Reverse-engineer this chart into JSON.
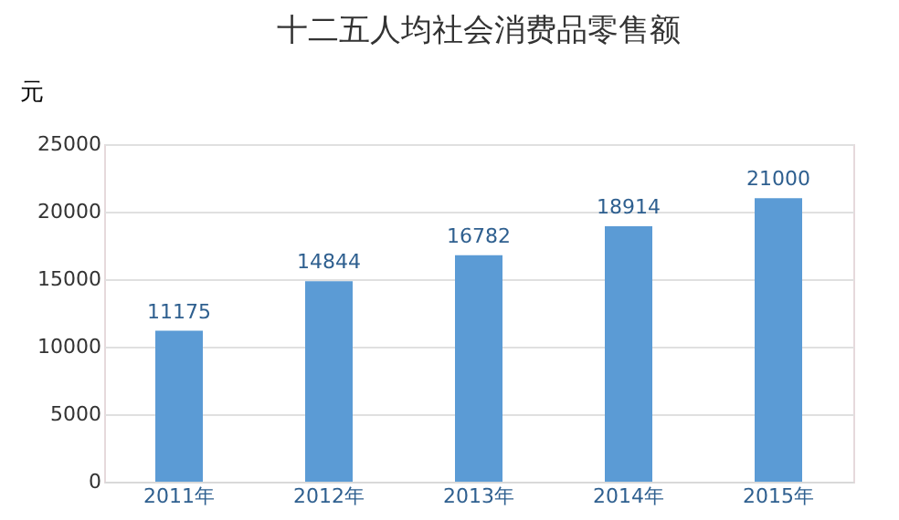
{
  "chart_data": {
    "type": "bar",
    "title": "十二五人均社会消费品零售额",
    "ylabel": "元",
    "categories": [
      "2011年",
      "2012年",
      "2013年",
      "2014年",
      "2015年"
    ],
    "values": [
      11175,
      14844,
      16782,
      18914,
      21000
    ],
    "color": "#5b9bd5",
    "ylim": [
      0,
      25000
    ],
    "yticks": [
      0,
      5000,
      10000,
      15000,
      20000,
      25000
    ],
    "grid": "y",
    "data_labels": true
  }
}
